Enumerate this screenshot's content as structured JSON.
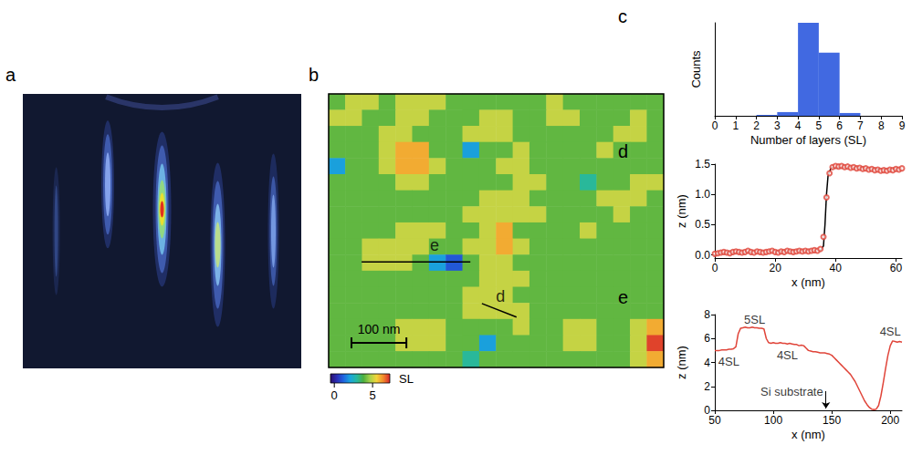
{
  "chart_data": [
    {
      "panel": "a",
      "type": "image"
    },
    {
      "panel": "b",
      "type": "heatmap",
      "tick_labels": false,
      "xlim": [
        0,
        610
      ],
      "ylim": [
        0,
        505
      ],
      "cells": [
        [
          4,
          5,
          5,
          4,
          5,
          5,
          5,
          4,
          4,
          4,
          4,
          4,
          4,
          5,
          4,
          4,
          4,
          4,
          4,
          4
        ],
        [
          5,
          5,
          4,
          4,
          5,
          5,
          4,
          4,
          4,
          5,
          5,
          4,
          4,
          5,
          5,
          4,
          4,
          4,
          5,
          4
        ],
        [
          4,
          4,
          4,
          5,
          5,
          4,
          4,
          4,
          5,
          5,
          5,
          4,
          4,
          4,
          4,
          4,
          4,
          5,
          5,
          4
        ],
        [
          4,
          4,
          4,
          5,
          6,
          6,
          4,
          4,
          2,
          4,
          4,
          5,
          4,
          4,
          4,
          4,
          5,
          4,
          4,
          4
        ],
        [
          2,
          4,
          4,
          5,
          6,
          6,
          5,
          4,
          4,
          4,
          5,
          5,
          4,
          4,
          4,
          4,
          4,
          4,
          4,
          4
        ],
        [
          4,
          4,
          4,
          4,
          5,
          5,
          4,
          4,
          4,
          4,
          4,
          5,
          5,
          4,
          4,
          3,
          4,
          4,
          5,
          5
        ],
        [
          4,
          4,
          4,
          4,
          4,
          4,
          4,
          4,
          4,
          5,
          5,
          5,
          4,
          4,
          4,
          4,
          5,
          5,
          5,
          4
        ],
        [
          4,
          4,
          4,
          4,
          4,
          4,
          4,
          4,
          5,
          5,
          5,
          5,
          5,
          4,
          4,
          4,
          4,
          5,
          4,
          4
        ],
        [
          4,
          4,
          4,
          4,
          5,
          5,
          5,
          4,
          4,
          5,
          6,
          4,
          4,
          4,
          4,
          5,
          4,
          4,
          4,
          4
        ],
        [
          4,
          4,
          5,
          5,
          5,
          5,
          4,
          4,
          5,
          5,
          6,
          5,
          4,
          4,
          4,
          4,
          4,
          4,
          4,
          4
        ],
        [
          4,
          4,
          5,
          5,
          5,
          4,
          2,
          1,
          4,
          5,
          5,
          4,
          4,
          4,
          4,
          4,
          4,
          4,
          4,
          4
        ],
        [
          4,
          4,
          4,
          4,
          4,
          4,
          4,
          4,
          4,
          5,
          5,
          5,
          4,
          4,
          4,
          4,
          4,
          4,
          4,
          4
        ],
        [
          4,
          4,
          4,
          4,
          4,
          4,
          4,
          4,
          5,
          5,
          5,
          4,
          4,
          4,
          4,
          4,
          4,
          4,
          4,
          4
        ],
        [
          4,
          4,
          4,
          4,
          4,
          4,
          4,
          4,
          5,
          5,
          5,
          5,
          4,
          4,
          4,
          4,
          4,
          4,
          4,
          4
        ],
        [
          4,
          4,
          4,
          4,
          5,
          5,
          5,
          4,
          4,
          4,
          4,
          5,
          4,
          4,
          5,
          5,
          4,
          4,
          5,
          6
        ],
        [
          4,
          4,
          4,
          4,
          5,
          5,
          5,
          4,
          4,
          2,
          4,
          4,
          4,
          4,
          5,
          5,
          4,
          4,
          5,
          7
        ],
        [
          4,
          4,
          4,
          4,
          4,
          4,
          4,
          4,
          3,
          4,
          4,
          4,
          4,
          4,
          4,
          4,
          4,
          4,
          5,
          6
        ]
      ],
      "colorbar": {
        "range": [
          -0.5,
          7.25
        ],
        "ticks": [
          0,
          5
        ],
        "label": "SL",
        "colors": [
          "#2b0f6e",
          "#2a2fb8",
          "#1f66e0",
          "#1aa6dc",
          "#27b9a0",
          "#4caf3e",
          "#a8d24a",
          "#f2d43a",
          "#f28a2c",
          "#d9262b"
        ]
      },
      "scale_bar": {
        "label": "100 nm",
        "length": 100
      },
      "profiles": [
        {
          "label": "e",
          "from": [
            60,
            310
          ],
          "to": [
            258,
            310
          ],
          "label_position": [
            193,
            280
          ]
        },
        {
          "label": "d",
          "from": [
            279,
            387
          ],
          "to": [
            342,
            412
          ],
          "label_position": [
            313,
            373
          ]
        }
      ]
    },
    {
      "panel": "c",
      "type": "histogram",
      "x_label": "Number of layers (SL)",
      "y_label": "Counts",
      "bins": [
        0,
        1,
        2,
        3,
        4,
        5,
        6,
        7,
        8,
        9
      ],
      "counts": [
        0,
        0,
        1,
        4,
        100,
        68,
        3,
        0,
        0
      ],
      "color": "#4169e1",
      "xlim": [
        0,
        9
      ],
      "xticks": [
        0,
        1,
        2,
        3,
        4,
        5,
        6,
        7,
        8,
        9
      ],
      "ylim": [
        0,
        100
      ],
      "yticks": [],
      "tick_labels": "x"
    },
    {
      "panel": "d",
      "type": "line",
      "x_label": "x (nm)",
      "y_label": "z (nm)",
      "xlim": [
        0,
        62
      ],
      "xticks": [
        0,
        20,
        40,
        60
      ],
      "ylim": [
        -0.05,
        1.5
      ],
      "yticks": [
        {
          "value": 0,
          "label": "0.0"
        },
        {
          "value": 0.5,
          "label": "0.5"
        },
        {
          "value": 1,
          "label": "1.0"
        },
        {
          "value": 1.5,
          "label": "1.5"
        }
      ],
      "series": [
        {
          "type": "scatter",
          "marker": "hollow",
          "color": "#e0453a",
          "x": [
            0,
            1,
            2,
            3,
            4,
            5,
            6,
            7,
            8,
            9,
            10,
            11,
            12,
            13,
            14,
            15,
            16,
            17,
            18,
            19,
            20,
            21,
            22,
            23,
            24,
            25,
            26,
            27,
            28,
            29,
            30,
            31,
            32,
            33,
            34,
            35,
            36,
            37,
            38,
            39,
            40,
            41,
            42,
            43,
            44,
            45,
            46,
            47,
            48,
            49,
            50,
            51,
            52,
            53,
            54,
            55,
            56,
            57,
            58,
            59,
            60,
            61,
            62
          ],
          "values": [
            0.02,
            0.03,
            0.04,
            0.05,
            0.04,
            0.03,
            0.05,
            0.06,
            0.05,
            0.04,
            0.05,
            0.07,
            0.05,
            0.04,
            0.06,
            0.05,
            0.04,
            0.05,
            0.06,
            0.07,
            0.05,
            0.04,
            0.06,
            0.05,
            0.07,
            0.06,
            0.05,
            0.06,
            0.07,
            0.06,
            0.07,
            0.06,
            0.07,
            0.08,
            0.07,
            0.1,
            0.3,
            0.95,
            1.35,
            1.45,
            1.47,
            1.46,
            1.47,
            1.45,
            1.46,
            1.44,
            1.45,
            1.43,
            1.44,
            1.42,
            1.43,
            1.41,
            1.42,
            1.4,
            1.41,
            1.39,
            1.4,
            1.39,
            1.41,
            1.4,
            1.42,
            1.41,
            1.43
          ]
        },
        {
          "type": "line",
          "line_style": "solid",
          "color": "#000000",
          "x": [
            0,
            10,
            20,
            30,
            35,
            36,
            36.5,
            37,
            37.5,
            38.5,
            45,
            55,
            62
          ],
          "values": [
            0.03,
            0.05,
            0.06,
            0.07,
            0.08,
            0.15,
            0.5,
            1.0,
            1.3,
            1.44,
            1.45,
            1.41,
            1.42
          ]
        }
      ]
    },
    {
      "panel": "e",
      "type": "line",
      "x_label": "x (nm)",
      "y_label": "z (nm)",
      "xlim": [
        50,
        210
      ],
      "xticks": [
        50,
        100,
        150,
        200
      ],
      "ylim": [
        0,
        8
      ],
      "yticks": [
        0,
        2,
        4,
        6,
        8
      ],
      "series": [
        {
          "type": "line",
          "line_style": "solid",
          "color": "#e0453a",
          "x": [
            50,
            52,
            54,
            56,
            58,
            60,
            62,
            64,
            66,
            68,
            70,
            72,
            74,
            76,
            78,
            80,
            82,
            84,
            86,
            88,
            90,
            92,
            94,
            96,
            98,
            100,
            102,
            104,
            106,
            108,
            110,
            112,
            114,
            116,
            118,
            120,
            122,
            124,
            126,
            128,
            130,
            132,
            134,
            136,
            138,
            140,
            142,
            144,
            146,
            148,
            150,
            152,
            154,
            156,
            158,
            160,
            162,
            164,
            166,
            168,
            170,
            172,
            174,
            176,
            178,
            180,
            182,
            184,
            186,
            188,
            190,
            192,
            194,
            196,
            198,
            200,
            202,
            204,
            206,
            208,
            210
          ],
          "values": [
            5.0,
            5.0,
            5.0,
            5.05,
            5.05,
            5.05,
            5.1,
            5.1,
            5.15,
            5.3,
            6.4,
            6.85,
            6.9,
            6.95,
            6.9,
            6.9,
            6.95,
            6.9,
            6.9,
            6.85,
            6.85,
            6.8,
            6.0,
            5.65,
            5.6,
            5.65,
            5.6,
            5.6,
            5.65,
            5.6,
            5.6,
            5.55,
            5.6,
            5.55,
            5.5,
            5.5,
            5.4,
            5.45,
            5.4,
            5.2,
            5.0,
            4.95,
            4.9,
            4.9,
            4.85,
            4.8,
            4.8,
            4.8,
            4.75,
            4.7,
            4.6,
            4.4,
            4.2,
            4.0,
            3.8,
            3.6,
            3.4,
            3.2,
            3.0,
            2.7,
            2.4,
            2.0,
            1.6,
            1.2,
            0.8,
            0.5,
            0.25,
            0.1,
            0.05,
            0.1,
            0.4,
            1.2,
            2.3,
            3.5,
            4.6,
            5.4,
            5.8,
            5.75,
            5.7,
            5.75,
            5.7
          ]
        }
      ],
      "annotations": [
        {
          "text": "5SL",
          "x": 84,
          "y": 7.6
        },
        {
          "text": "4SL",
          "x": 62,
          "y": 4.1
        },
        {
          "text": "4SL",
          "x": 112,
          "y": 4.6
        },
        {
          "text": "4SL",
          "x": 200,
          "y": 6.6
        },
        {
          "text": "Si substrate",
          "x": 145,
          "y": 1.6,
          "arrow_to": [
            145,
            0.15
          ]
        }
      ]
    }
  ]
}
